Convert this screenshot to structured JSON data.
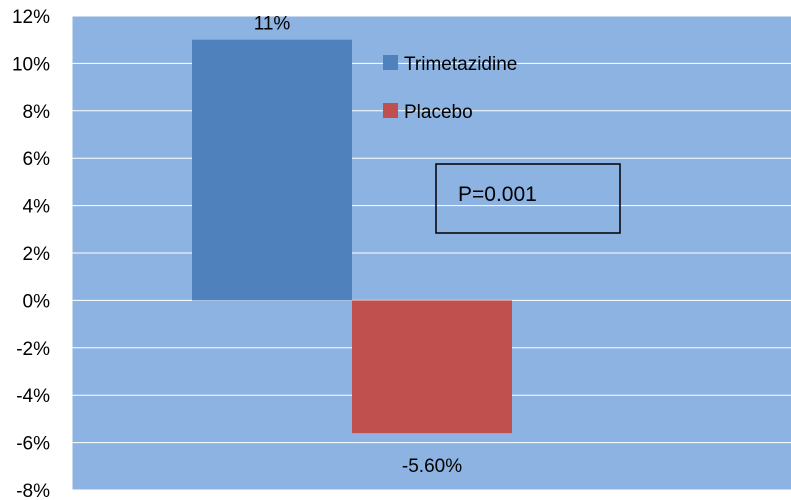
{
  "chart_data": {
    "type": "bar",
    "title": "",
    "xlabel": "",
    "ylabel": "",
    "ylim": [
      -8,
      12
    ],
    "y_tick_step": 2,
    "y_tick_labels": [
      "12%",
      "10%",
      "8%",
      "6%",
      "4%",
      "2%",
      "0%",
      "-2%",
      "-4%",
      "-6%",
      "-8%"
    ],
    "grid": true,
    "legend_position": "top-right",
    "series": [
      {
        "name": "Trimetazidine",
        "value": 11,
        "label": "11%",
        "color": "#4f81bd"
      },
      {
        "name": "Placebo",
        "value": -5.6,
        "label": "-5.60%",
        "color": "#c0504d"
      }
    ],
    "annotation": "P=0.001",
    "plot_background": "#8db3e2",
    "gridline_color": "#ffffff"
  }
}
